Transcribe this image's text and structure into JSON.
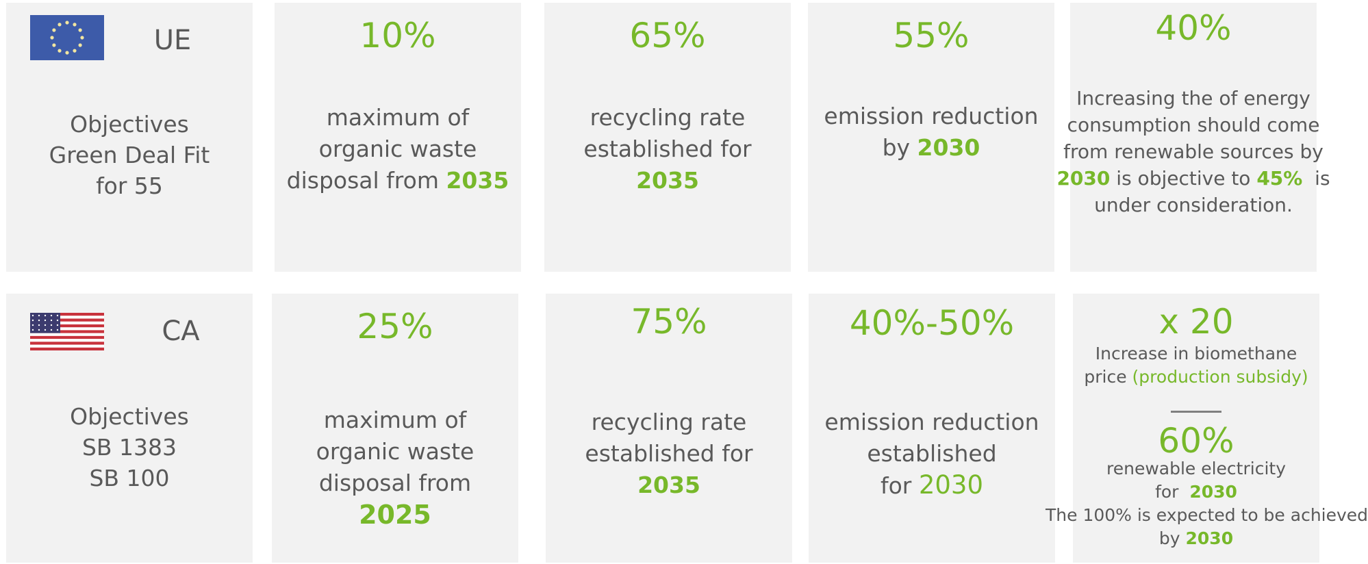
{
  "rows": [
    {
      "region": {
        "name": "UE",
        "lines": [
          "Objectives",
          "Green Deal Fit",
          "for 55"
        ]
      },
      "cards": [
        {
          "blocks": [
            {
              "value": "10%",
              "lines": [
                [
                  {
                    "text": "maximum of"
                  }
                ],
                [
                  {
                    "text": "organic waste"
                  }
                ],
                [
                  {
                    "text": "disposal from "
                  },
                  {
                    "text": "2035",
                    "style": "green-bold"
                  }
                ]
              ]
            }
          ]
        },
        {
          "blocks": [
            {
              "value": "65%",
              "lines": [
                [
                  {
                    "text": "recycling rate"
                  }
                ],
                [
                  {
                    "text": "established for"
                  }
                ],
                [
                  {
                    "text": "2035",
                    "style": "green-bold"
                  }
                ]
              ]
            }
          ]
        },
        {
          "blocks": [
            {
              "value": "55%",
              "lines": [
                [
                  {
                    "text": "emission reduction"
                  }
                ],
                [
                  {
                    "text": "by "
                  },
                  {
                    "text": "2030",
                    "style": "green-bold"
                  }
                ]
              ]
            }
          ]
        },
        {
          "blocks": [
            {
              "value": "40%",
              "lines": [
                [
                  {
                    "text": "Increasing the of energy"
                  }
                ],
                [
                  {
                    "text": "consumption should come"
                  }
                ],
                [
                  {
                    "text": "from renewable sources by"
                  }
                ],
                [
                  {
                    "text": "2030",
                    "style": "green-bold"
                  },
                  {
                    "text": " is objective to "
                  },
                  {
                    "text": "45%",
                    "style": "green-bold"
                  },
                  {
                    "text": "  is"
                  }
                ],
                [
                  {
                    "text": "under consideration."
                  }
                ]
              ]
            }
          ]
        }
      ]
    },
    {
      "region": {
        "name": "CA",
        "lines": [
          "Objectives",
          "SB 1383",
          "SB 100"
        ]
      },
      "cards": [
        {
          "blocks": [
            {
              "value": "25%",
              "lines": [
                [
                  {
                    "text": "maximum of"
                  }
                ],
                [
                  {
                    "text": "organic waste"
                  }
                ],
                [
                  {
                    "text": "disposal from"
                  }
                ],
                [
                  {
                    "text": "2025",
                    "style": "green-bold-large"
                  }
                ]
              ]
            }
          ]
        },
        {
          "blocks": [
            {
              "value": "75%",
              "lines": [
                [
                  {
                    "text": "recycling rate"
                  }
                ],
                [
                  {
                    "text": "established for"
                  }
                ],
                [
                  {
                    "text": "2035",
                    "style": "green-bold"
                  }
                ]
              ]
            }
          ]
        },
        {
          "blocks": [
            {
              "value": "40%-50%",
              "lines": [
                [
                  {
                    "text": "emission reduction"
                  }
                ],
                [
                  {
                    "text": "established"
                  }
                ],
                [
                  {
                    "text": "for "
                  },
                  {
                    "text": "2030",
                    "style": "green-large"
                  }
                ]
              ]
            }
          ]
        },
        {
          "blocks": [
            {
              "value": "x 20",
              "lines": [
                [
                  {
                    "text": "Increase in biomethane"
                  }
                ],
                [
                  {
                    "text": "price "
                  },
                  {
                    "text": "(production subsidy)",
                    "style": "green"
                  }
                ]
              ]
            },
            {
              "value": "60%",
              "lines": [
                [
                  {
                    "text": "renewable electricity"
                  }
                ],
                [
                  {
                    "text": "for  "
                  },
                  {
                    "text": "2030",
                    "style": "green-bold"
                  }
                ],
                [
                  {
                    "text": "The 100% is expected to be achieved"
                  }
                ],
                [
                  {
                    "text": "by "
                  },
                  {
                    "text": "2030",
                    "style": "green-bold"
                  }
                ]
              ]
            }
          ]
        }
      ]
    }
  ]
}
